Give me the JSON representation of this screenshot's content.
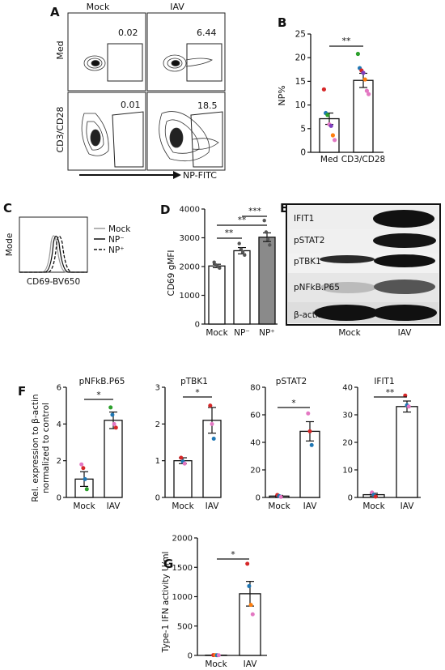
{
  "panel_letters": [
    "A",
    "B",
    "C",
    "D",
    "E",
    "F",
    "G"
  ],
  "panel_a": {
    "columns": [
      "Mock",
      "IAV"
    ],
    "rows": [
      "Med",
      "CD3/CD28"
    ],
    "gate_values": [
      [
        "0.02",
        "6.44"
      ],
      [
        "0.01",
        "18.5"
      ]
    ],
    "x_axis_label": "NP-FITC"
  },
  "panel_c": {
    "y_label": "Mode",
    "x_label": "CD69-BV650",
    "legend": [
      "Mock",
      "NP⁻",
      "NP⁺"
    ]
  },
  "panel_e": {
    "bands": [
      "IFIT1",
      "pSTAT2",
      "pTBK1",
      "pNFkB.P65",
      "β-actin"
    ],
    "lanes": [
      "Mock",
      "IAV"
    ]
  },
  "f_ylabel": [
    "Rel. expression to β-actin",
    "normalized to control"
  ],
  "chart_data": [
    {
      "panel": "B",
      "type": "bar",
      "categories": [
        "Med",
        "CD3/CD28"
      ],
      "values": [
        7.1,
        15.2
      ],
      "sem": [
        1.2,
        1.5
      ],
      "points": [
        [
          13.3,
          8.3,
          7.9,
          5.9,
          5.6,
          3.6,
          2.6
        ],
        [
          20.8,
          17.8,
          17.3,
          16.8,
          15.4,
          13.0,
          12.3
        ]
      ],
      "point_colors": [
        [
          "#d62728",
          "#1f77b4",
          "#2ca02c",
          "#e377c2",
          "#7f3fbf",
          "#ff7f0e",
          "#e377c2"
        ],
        [
          "#2ca02c",
          "#1f77b4",
          "#d62728",
          "#7f3fbf",
          "#ff7f0e",
          "#e377c2",
          "#e377c2"
        ]
      ],
      "ylabel": "NP%",
      "ylim": [
        0,
        25
      ],
      "yticks": [
        "0",
        "5",
        "10",
        "15",
        "20",
        "25"
      ],
      "sig": [
        "**"
      ]
    },
    {
      "panel": "D",
      "type": "bar",
      "categories": [
        "Mock",
        "NP⁻",
        "NP⁺"
      ],
      "values": [
        2020,
        2550,
        3020
      ],
      "sem": [
        60,
        110,
        150
      ],
      "points": [
        [
          2150,
          2050,
          2000,
          1950
        ],
        [
          2800,
          2600,
          2500,
          2400
        ],
        [
          3600,
          3200,
          2950,
          2750
        ]
      ],
      "bar_colors": [
        "#ffffff",
        "#ffffff",
        "#8a8a8a"
      ],
      "ylabel": "CD69 gMFI",
      "ylim": [
        0,
        4000
      ],
      "yticks": [
        "0",
        "1000",
        "2000",
        "3000",
        "4000"
      ],
      "sig": [
        "**",
        "**",
        "***"
      ]
    },
    {
      "panel": "F",
      "type": "bar",
      "title": "pNFkB.P65",
      "categories": [
        "Mock",
        "IAV"
      ],
      "values": [
        1.0,
        4.2
      ],
      "sem": [
        0.4,
        0.45
      ],
      "points": [
        [
          1.8,
          1.6,
          1.0,
          0.45
        ],
        [
          4.9,
          4.5,
          4.0,
          3.8
        ]
      ],
      "point_colors": [
        [
          "#e377c2",
          "#d62728",
          "#1f77b4",
          "#2ca02c"
        ],
        [
          "#2ca02c",
          "#1f77b4",
          "#e377c2",
          "#d62728"
        ]
      ],
      "ylim": [
        0,
        6
      ],
      "yticks": [
        "0",
        "2",
        "4",
        "6"
      ],
      "sig": "*"
    },
    {
      "panel": "F",
      "type": "bar",
      "title": "pTBK1",
      "categories": [
        "Mock",
        "IAV"
      ],
      "values": [
        1.0,
        2.1
      ],
      "sem": [
        0.08,
        0.35
      ],
      "points": [
        [
          1.08,
          0.98,
          0.92
        ],
        [
          2.5,
          2.0,
          1.6
        ]
      ],
      "point_colors": [
        [
          "#d62728",
          "#1f77b4",
          "#e377c2"
        ],
        [
          "#d62728",
          "#e377c2",
          "#1f77b4"
        ]
      ],
      "ylim": [
        0,
        3
      ],
      "yticks": [
        "0",
        "1",
        "2",
        "3"
      ],
      "sig": "*"
    },
    {
      "panel": "F",
      "type": "bar",
      "title": "pSTAT2",
      "categories": [
        "Mock",
        "IAV"
      ],
      "values": [
        1,
        48
      ],
      "sem": [
        0.5,
        7
      ],
      "points": [
        [
          1.8,
          1.0,
          0.4
        ],
        [
          61,
          48,
          38
        ]
      ],
      "point_colors": [
        [
          "#d62728",
          "#1f77b4",
          "#e377c2"
        ],
        [
          "#e377c2",
          "#d62728",
          "#1f77b4"
        ]
      ],
      "ylim": [
        0,
        80
      ],
      "yticks": [
        "0",
        "20",
        "40",
        "60",
        "80"
      ],
      "sig": "*"
    },
    {
      "panel": "F",
      "type": "bar",
      "title": "IFIT1",
      "categories": [
        "Mock",
        "IAV"
      ],
      "values": [
        1,
        33
      ],
      "sem": [
        0.5,
        2
      ],
      "points": [
        [
          1.8,
          1.0,
          0.3
        ],
        [
          37,
          33.5,
          33
        ]
      ],
      "point_colors": [
        [
          "#e377c2",
          "#1f77b4",
          "#d62728"
        ],
        [
          "#d62728",
          "#1f77b4",
          "#e377c2"
        ]
      ],
      "ylim": [
        0,
        40
      ],
      "yticks": [
        "0",
        "10",
        "20",
        "30",
        "40"
      ],
      "sig": "**"
    },
    {
      "panel": "G",
      "type": "bar",
      "categories": [
        "Mock",
        "IAV"
      ],
      "values": [
        5,
        1050
      ],
      "sem": [
        3,
        210
      ],
      "points": [
        [
          6,
          5,
          4,
          3
        ],
        [
          1560,
          1180,
          860,
          700
        ]
      ],
      "point_colors": [
        [
          "#d62728",
          "#ff7f0e",
          "#1f77b4",
          "#e377c2"
        ],
        [
          "#d62728",
          "#1f77b4",
          "#ff7f0e",
          "#e377c2"
        ]
      ],
      "ylabel": "Type-1 IFN activity U/ml",
      "ylim": [
        0,
        2000
      ],
      "yticks": [
        "0",
        "500",
        "1000",
        "1500",
        "2000"
      ],
      "sig": "*"
    }
  ]
}
